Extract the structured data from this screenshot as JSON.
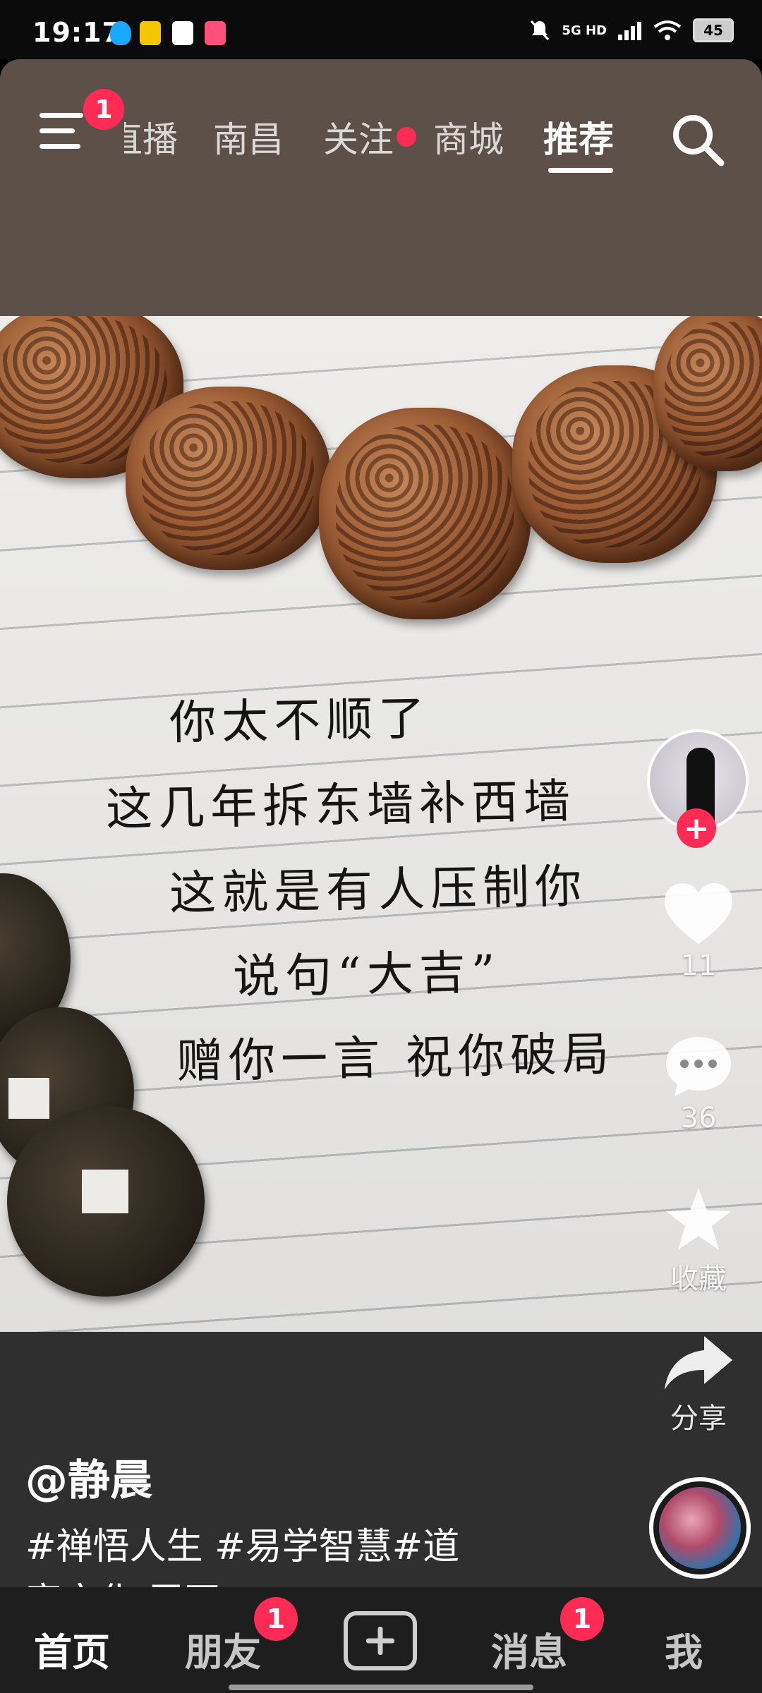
{
  "status_bar": {
    "time": "19:17",
    "network": "5G HD",
    "battery": "45",
    "icons": [
      "qq-icon",
      "app-badge-icon",
      "flash-icon",
      "app-pink-icon",
      "mute-bell-icon",
      "signal-icon",
      "wifi-icon",
      "battery-icon"
    ]
  },
  "top_nav": {
    "menu_badge": "1",
    "tabs": [
      "直播",
      "南昌",
      "关注",
      "商城",
      "推荐"
    ],
    "active_tab": "推荐"
  },
  "post": {
    "handwriting_lines": [
      "你太不顺了",
      "这几年拆东墙补西墙",
      "这就是有人压制你",
      "说句“大吉”",
      "赠你一言 祝你破局"
    ],
    "author": "@静晨",
    "caption_line1": "#禅悟人生 #易学智慧#道",
    "caption_line2": "家文化  展开"
  },
  "actions": {
    "like_count": "11",
    "comment_count": "36",
    "favorite_label": "收藏",
    "share_label": "分享"
  },
  "bottom_nav": {
    "home": "首页",
    "friends": "朋友",
    "friends_badge": "1",
    "messages": "消息",
    "messages_badge": "1",
    "me": "我"
  },
  "colors": {
    "accent": "#fe2c55",
    "nav_bg": "#5c5048",
    "bottom_bar": "#1e1e1e"
  }
}
